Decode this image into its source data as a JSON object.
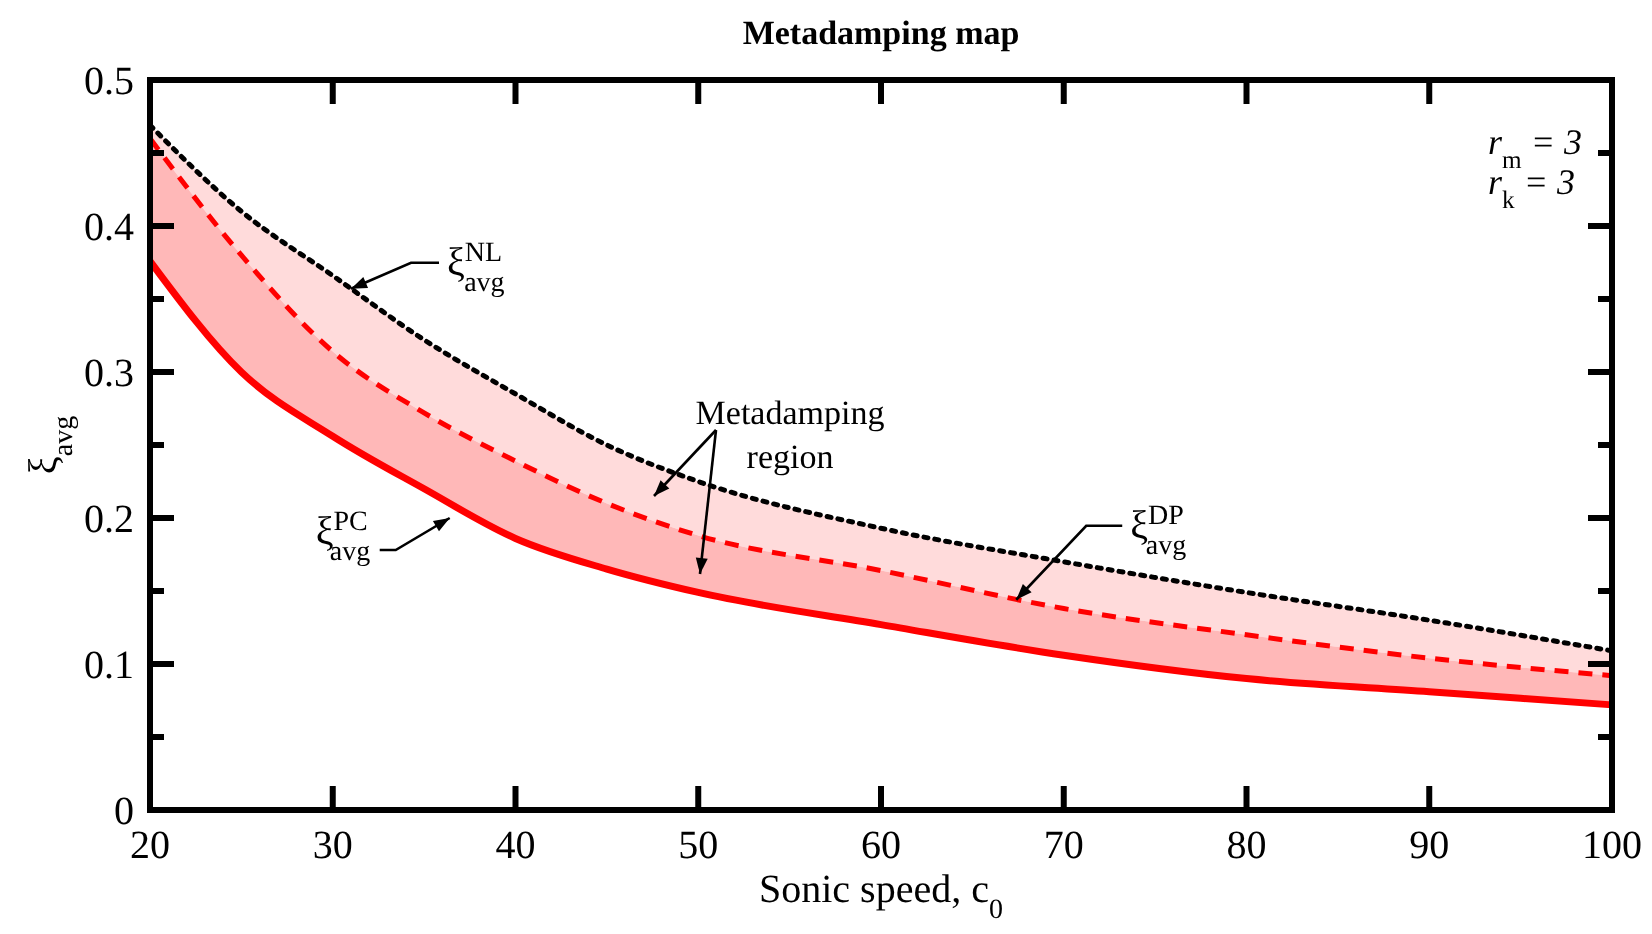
{
  "chart_data": {
    "type": "line",
    "title": "Metadamping map",
    "xlabel": "Sonic speed, c$_{0}$",
    "ylabel": "ξ$_{avg}$",
    "x": [
      20,
      25,
      30,
      35,
      40,
      45,
      50,
      60,
      70,
      80,
      90,
      100
    ],
    "xlim": [
      20,
      100
    ],
    "xticks": [
      20,
      30,
      40,
      50,
      60,
      70,
      80,
      90,
      100
    ],
    "ylim": [
      0,
      0.5
    ],
    "yticks": [
      0,
      {
        "value": 0.05,
        "label": null
      },
      0.1,
      {
        "value": 0.15,
        "label": null
      },
      0.2,
      {
        "value": 0.25,
        "label": null
      },
      0.3,
      {
        "value": 0.35,
        "label": null
      },
      0.4,
      {
        "value": 0.45,
        "label": null
      },
      0.5
    ],
    "grid": false,
    "series": [
      {
        "color": "#000000",
        "line_style": "dotted",
        "values": [
          0.469,
          0.41,
          0.366,
          0.322,
          0.285,
          0.25,
          0.225,
          0.193,
          0.17,
          0.149,
          0.13,
          0.109
        ],
        "lower": [
          0.46,
          0.38,
          0.314,
          0.272,
          0.239,
          0.21,
          0.188,
          0.164,
          0.138,
          0.12,
          0.104,
          0.092
        ],
        "upper": [
          0.469,
          0.41,
          0.366,
          0.322,
          0.285,
          0.25,
          0.225,
          0.193,
          0.17,
          0.149,
          0.13,
          0.109
        ]
      },
      {
        "color": "#ff0000",
        "line_style": "dashed",
        "values": [
          0.46,
          0.38,
          0.314,
          0.272,
          0.239,
          0.21,
          0.188,
          0.164,
          0.138,
          0.12,
          0.104,
          0.092
        ],
        "lower": [
          0.376,
          0.3,
          0.256,
          0.22,
          0.186,
          0.165,
          0.149,
          0.127,
          0.106,
          0.09,
          0.081,
          0.072
        ],
        "upper": [
          0.46,
          0.38,
          0.314,
          0.272,
          0.239,
          0.21,
          0.188,
          0.164,
          0.138,
          0.12,
          0.104,
          0.092
        ]
      },
      {
        "color": "#ff0000",
        "line_style": "solid",
        "values": [
          0.376,
          0.3,
          0.256,
          0.22,
          0.186,
          0.165,
          0.149,
          0.127,
          0.106,
          0.09,
          0.081,
          0.072
        ]
      }
    ],
    "annotations": [
      {
        "text": "ξ$^{NL}$$_{avg}$",
        "x": 31,
        "y": 0.357
      },
      {
        "text": "ξ$^{PC}$$_{avg}$",
        "x": 36.4,
        "y": 0.2
      },
      {
        "text": "ξ$^{DP}$$_{avg}$",
        "x": 67.4,
        "y": 0.144
      },
      "Metadamping region",
      "r$_{m}$ = 3",
      "r$_{k}$ = 3"
    ]
  }
}
